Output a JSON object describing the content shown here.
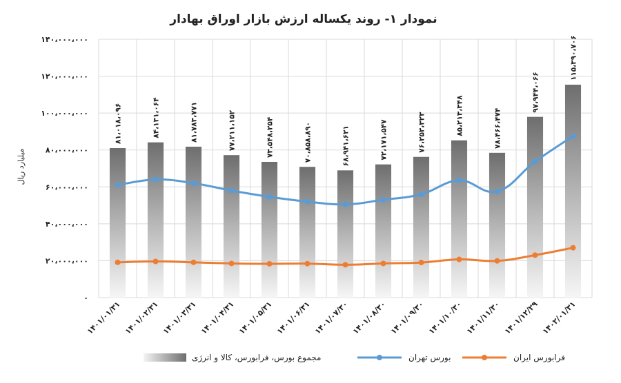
{
  "chart_data": {
    "type": "bar",
    "title": "نمودار ۱- روند یکساله ارزش بازار اوراق بهادار",
    "ylabel": "میلیارد ریال",
    "xlabel": "",
    "ylim": [
      0,
      140000000
    ],
    "yticks": [
      0,
      20000000,
      40000000,
      60000000,
      80000000,
      100000000,
      120000000,
      140000000
    ],
    "ytick_labels": [
      "۰",
      "۲۰،۰۰۰،۰۰۰",
      "۴۰،۰۰۰،۰۰۰",
      "۶۰،۰۰۰،۰۰۰",
      "۸۰،۰۰۰،۰۰۰",
      "۱۰۰،۰۰۰،۰۰۰",
      "۱۲۰،۰۰۰،۰۰۰",
      "۱۴۰،۰۰۰،۰۰۰"
    ],
    "categories": [
      "۱۴۰۱/۰۱/۳۱",
      "۱۴۰۱/۰۲/۳۱",
      "۱۴۰۱/۰۳/۳۱",
      "۱۴۰۱/۰۴/۳۱",
      "۱۴۰۱/۰۵/۳۱",
      "۱۴۰۱/۰۶/۳۱",
      "۱۴۰۱/۰۷/۳۰",
      "۱۴۰۱/۰۸/۳۰",
      "۱۴۰۱/۰۹/۳۰",
      "۱۴۰۱/۱۰/۳۰",
      "۱۴۰۱/۱۱/۳۰",
      "۱۴۰۱/۱۲/۲۹",
      "۱۴۰۲/۰۱/۳۱"
    ],
    "grid": true,
    "legend_position": "bottom",
    "series": [
      {
        "name": "مجموع بورس، فرابورس، کالا و انرژی",
        "type": "bar",
        "color": "#7a7a7a",
        "values": [
          81018096,
          84131064,
          81783771,
          77211152,
          73548254,
          70858890,
          68941621,
          72171547,
          76253323,
          85213348,
          78466474,
          97944066,
          115390706
        ],
        "labels": [
          "۸۱،۰۱۸،۰۹۶",
          "۸۴،۱۳۱،۰۶۴",
          "۸۱،۷۸۳،۷۷۱",
          "۷۷،۲۱۱،۱۵۲",
          "۷۳،۵۴۸،۲۵۴",
          "۷۰،۸۵۸،۸۹۰",
          "۶۸،۹۴۱،۶۲۱",
          "۷۲،۱۷۱،۵۴۷",
          "۷۶،۲۵۳،۳۲۳",
          "۸۵،۲۱۳،۳۴۸",
          "۷۸،۴۶۶،۴۷۴",
          "۹۷،۹۴۴،۰۶۶",
          "۱۱۵،۳۹۰،۷۰۶"
        ]
      },
      {
        "name": "بورس تهران",
        "type": "line",
        "color": "#5b9bd5",
        "values": [
          61000000,
          64000000,
          62000000,
          58000000,
          54600000,
          52000000,
          50500000,
          53000000,
          56000000,
          63500000,
          57500000,
          73700000,
          87500000
        ]
      },
      {
        "name": "فرابورس ایران",
        "type": "line",
        "color": "#ed7d31",
        "values": [
          19100000,
          19600000,
          19100000,
          18500000,
          18300000,
          18400000,
          17800000,
          18500000,
          19000000,
          20700000,
          19900000,
          23000000,
          27000000
        ]
      }
    ]
  }
}
